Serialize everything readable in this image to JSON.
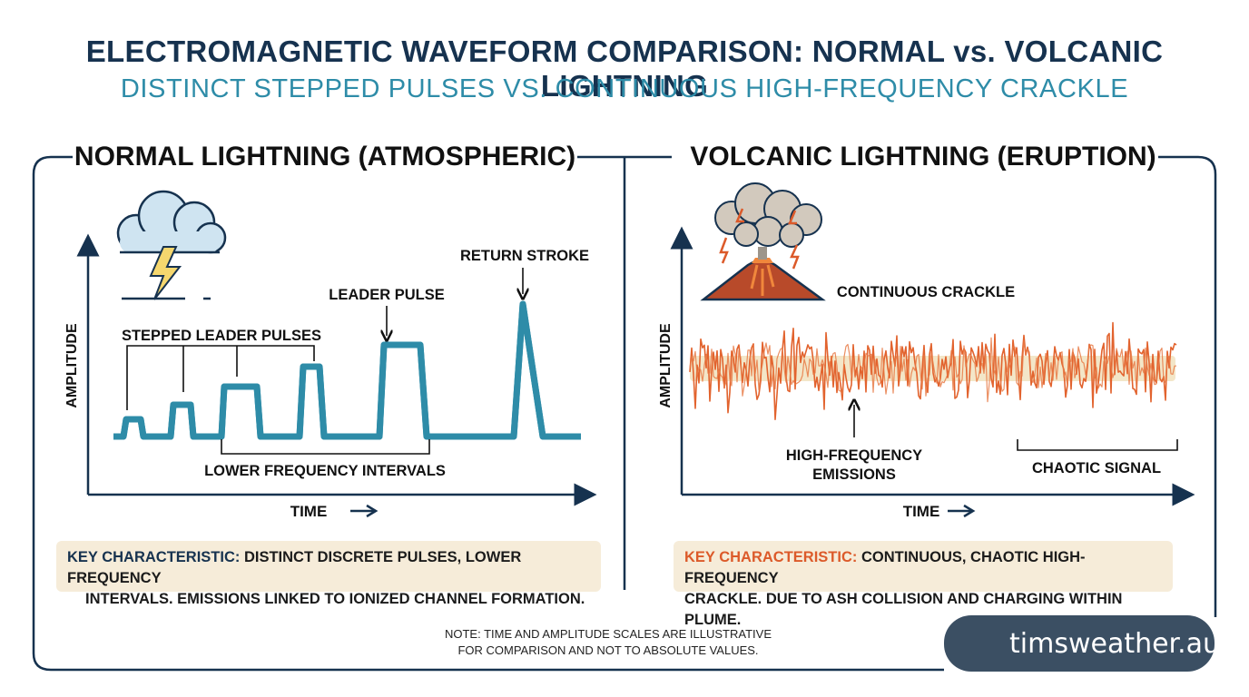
{
  "title": "ELECTROMAGNETIC WAVEFORM COMPARISON: NORMAL vs. VOLCANIC LIGHTNING",
  "subtitle": "DISTINCT STEPPED PULSES VS. CONTINUOUS HIGH-FREQUENCY CRACKLE",
  "colors": {
    "navy": "#16324f",
    "teal": "#2e8ca8",
    "orange": "#dc5a2a",
    "cream": "#f6ecd9",
    "brand_bg": "#3b4f63"
  },
  "normal": {
    "heading": "NORMAL LIGHTNING (ATMOSPHERIC)",
    "icon": "storm-cloud-lightning-icon",
    "y_label": "AMPLITUDE",
    "x_label": "TIME",
    "annotations": {
      "stepped": "STEPPED LEADER PULSES",
      "leader": "LEADER PULSE",
      "return": "RETURN STROKE",
      "intervals": "LOWER FREQUENCY INTERVALS"
    },
    "key_label": "KEY CHARACTERISTIC:",
    "key_text_1": "DISTINCT DISCRETE PULSES, LOWER FREQUENCY",
    "key_text_2": "INTERVALS. EMISSIONS LINKED TO IONIZED CHANNEL FORMATION."
  },
  "volcanic": {
    "heading": "VOLCANIC LIGHTNING (ERUPTION)",
    "icon": "erupting-volcano-icon",
    "y_label": "AMPLITUDE",
    "x_label": "TIME",
    "annotations": {
      "crackle": "CONTINUOUS CRACKLE",
      "hf_1": "HIGH-FREQUENCY",
      "hf_2": "EMISSIONS",
      "chaotic": "CHAOTIC SIGNAL"
    },
    "key_label": "KEY CHARACTERISTIC:",
    "key_text_1": "CONTINUOUS, CHAOTIC HIGH-FREQUENCY",
    "key_text_2": "CRACKLE. DUE TO ASH COLLISION AND CHARGING WITHIN PLUME."
  },
  "note_line_1": "NOTE: TIME AND AMPLITUDE SCALES ARE ILLUSTRATIVE",
  "note_line_2": "FOR COMPARISON AND NOT TO ABSOLUTE VALUES.",
  "brand": {
    "text": "timsweather.au",
    "icon": "sun-cloud-icon"
  }
}
